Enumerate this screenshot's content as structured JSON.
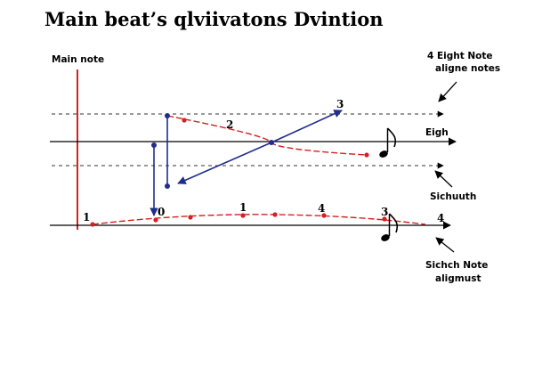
{
  "title": "Main beat’s qlviivatons Dvintion",
  "labels": {
    "main_note": "Main note",
    "eight_note_line1": "4 Eight Note",
    "eight_note_line2": "aligne notes",
    "eigh": "Eigh",
    "sichuuth": "Sichuuth",
    "sichch_line1": "Sichch Note",
    "sichch_line2": "aligmust"
  },
  "upper_numbers": [
    "2",
    "3"
  ],
  "lower_numbers": [
    "1",
    "0",
    "1",
    "4",
    "3",
    "4"
  ],
  "colors": {
    "main_note_line": "#d42020",
    "curve": "#d42020",
    "arrow": "#1f2e8c",
    "staff": "#000000",
    "dashed": "#333333"
  },
  "icons": [
    "eighth-note-icon",
    "eighth-note-icon"
  ]
}
